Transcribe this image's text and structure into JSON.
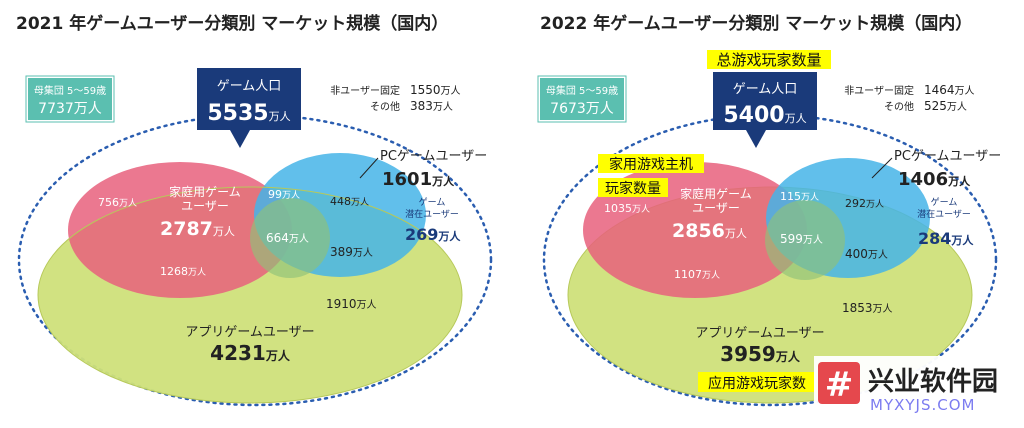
{
  "panels": [
    {
      "title": "2021 年ゲームユーザー分類別 マーケット規模（国内）",
      "population": {
        "label": "母集団 5～59歳",
        "value": "7737万人"
      },
      "game_population": {
        "label": "ゲーム人口",
        "value": "5535",
        "unit": "万人"
      },
      "non_user_fixed": {
        "label": "非ユーザー固定",
        "value": "1550",
        "unit": "万人"
      },
      "other": {
        "label": "その他",
        "value": "383",
        "unit": "万人"
      },
      "pc_user": {
        "label": "PCゲームユーザー",
        "value": "1601",
        "unit": "万人"
      },
      "potential": {
        "label_line1": "ゲーム",
        "label_line2": "潜在ユーザー",
        "value": "269",
        "unit": "万人"
      },
      "home_user": {
        "label_line1": "家庭用ゲーム",
        "label_line2": "ユーザー",
        "value": "2787",
        "unit": "万人"
      },
      "app_user": {
        "label": "アプリゲームユーザー",
        "value": "4231",
        "unit": "万人"
      },
      "regions": {
        "home_only": {
          "value": "756",
          "unit": "万人"
        },
        "home_pc": {
          "value": "99",
          "unit": "万人"
        },
        "pc_only": {
          "value": "448",
          "unit": "万人"
        },
        "all_three": {
          "value": "664",
          "unit": "万人"
        },
        "pc_app": {
          "value": "389",
          "unit": "万人"
        },
        "home_app": {
          "value": "1268",
          "unit": "万人"
        },
        "app_only": {
          "value": "1910",
          "unit": "万人"
        }
      }
    },
    {
      "title": "2022 年ゲームユーザー分類別 マーケット規模（国内）",
      "population": {
        "label": "母集団 5～59歳",
        "value": "7673万人"
      },
      "game_population": {
        "label": "ゲーム人口",
        "value": "5400",
        "unit": "万人"
      },
      "non_user_fixed": {
        "label": "非ユーザー固定",
        "value": "1464",
        "unit": "万人"
      },
      "other": {
        "label": "その他",
        "value": "525",
        "unit": "万人"
      },
      "pc_user": {
        "label": "PCゲームユーザー",
        "value": "1406",
        "unit": "万人"
      },
      "potential": {
        "label_line1": "ゲーム",
        "label_line2": "潜在ユーザー",
        "value": "284",
        "unit": "万人"
      },
      "home_user": {
        "label_line1": "家庭用ゲーム",
        "label_line2": "ユーザー",
        "value": "2856",
        "unit": "万人"
      },
      "app_user": {
        "label": "アプリゲームユーザー",
        "value": "3959",
        "unit": "万人"
      },
      "regions": {
        "home_only": {
          "value": "1035",
          "unit": "万人"
        },
        "home_pc": {
          "value": "115",
          "unit": "万人"
        },
        "pc_only": {
          "value": "292",
          "unit": "万人"
        },
        "all_three": {
          "value": "599",
          "unit": "万人"
        },
        "pc_app": {
          "value": "400",
          "unit": "万人"
        },
        "home_app": {
          "value": "1107",
          "unit": "万人"
        },
        "app_only": {
          "value": "1853",
          "unit": "万人"
        }
      },
      "annotations": {
        "total": "总游戏玩家数量",
        "home_line1": "家用游戏主机",
        "home_line2": "玩家数量",
        "app": "应用游戏玩家数"
      }
    }
  ],
  "watermark": {
    "symbol": "#",
    "name": "兴业软件园",
    "url": "MYXYJS.COM"
  },
  "colors": {
    "title": "#222222",
    "navy": "#1a3a7a",
    "teal": "#5bbfb0",
    "home": "#e8607c",
    "pc": "#45b4e8",
    "app": "#cfe07a",
    "dotted": "#2a5db0",
    "highlight": "#ffff00",
    "watermark_red": "#e5484d",
    "watermark_url": "#7c7cf0"
  }
}
